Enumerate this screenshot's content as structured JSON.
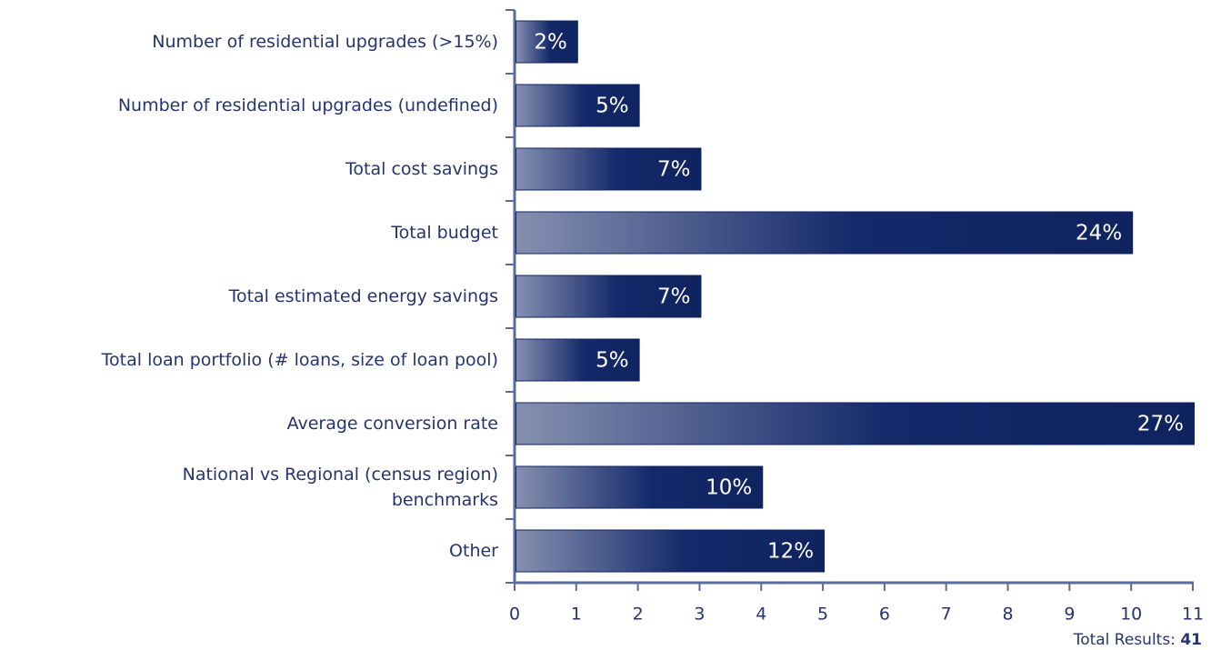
{
  "chart_data": {
    "type": "barh",
    "categories": [
      "Number of residential upgrades (>15%)",
      "Number of residential upgrades (undefined)",
      "Total cost savings",
      "Total budget",
      "Total estimated energy savings",
      "Total loan portfolio (# loans, size of loan pool)",
      "Average conversion rate",
      "National vs Regional (census region)\nbenchmarks",
      "Other"
    ],
    "values": [
      1,
      2,
      3,
      10,
      3,
      2,
      11,
      4,
      5
    ],
    "value_labels": [
      "2%",
      "5%",
      "7%",
      "24%",
      "7%",
      "5%",
      "27%",
      "10%",
      "12%"
    ],
    "color": "#0f235f",
    "xlim": [
      0,
      11
    ],
    "xticks": [
      0,
      1,
      2,
      3,
      4,
      5,
      6,
      7,
      8,
      9,
      10,
      11
    ],
    "total_label": "Total Results:",
    "total": 41
  }
}
